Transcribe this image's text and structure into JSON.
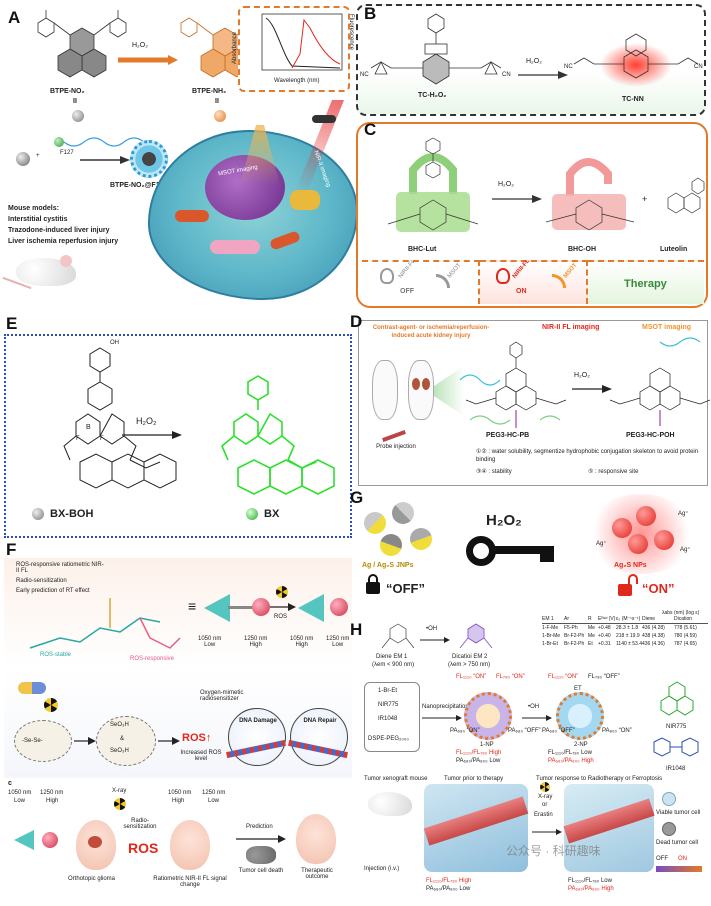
{
  "panels": {
    "A": {
      "letter": "A",
      "h2o2": "H₂O₂",
      "compound1": "BTPE-NO₂",
      "compound2": "BTPE-NH₂",
      "roman": "II",
      "f127": "F127",
      "np": "BTPE-NO₂@F127",
      "inset_xlabel": "Wavelength (nm)",
      "inset_ylabel_left": "Absorbance",
      "inset_ylabel_right": "Fluorescence",
      "inset_ticks": [
        "400",
        "600",
        "800",
        "1000",
        "1200",
        "1400"
      ],
      "mouse_models_title": "Mouse models:",
      "models": [
        "Interstitial cystitis",
        "Trazodone-induced liver injury",
        "Liver ischemia reperfusion injury"
      ],
      "msot": "MSOT imaging",
      "nir2": "NIR-II imaging"
    },
    "B": {
      "letter": "B",
      "c1": "TC-H₂O₂",
      "c2": "TC-NN",
      "h2o2": "H₂O₂",
      "nc": "NC",
      "cn": "CN"
    },
    "C": {
      "letter": "C",
      "c1": "BHC-Lut",
      "c2": "BHC-OH",
      "c3": "Luteolin",
      "h2o2": "H₂O₂",
      "plus": "+",
      "nirfl": "NIRII-FL",
      "msot": "MSOT",
      "off": "OFF",
      "on": "ON",
      "therapy": "Therapy"
    },
    "D": {
      "letter": "D",
      "header_left": "Contrast-agent- or ischemia/reperfusion-induced acute kidney injury",
      "header_mid": "NIR-II FL imaging",
      "header_right": "MSOT imaging",
      "probe": "Probe injection",
      "c1": "PEG3-HC-PB",
      "c2": "PEG3-HC-POH",
      "h2o2": "H₂O₂",
      "legend1": "①② : water solubility, segmentize hydrophobic conjugation skeleton to avoid protein binding",
      "legend2": "③④ : stability",
      "legend3": "⑤ : responsive site"
    },
    "E": {
      "letter": "E",
      "h2o2": "H₂O₂",
      "c1": "BX-BOH",
      "c2": "BX",
      "boh": "OH",
      "b": "B",
      "f": "F"
    },
    "F": {
      "letter": "F",
      "bullets": [
        "ROS-responsive ratiometric NIR-II FL",
        "Radio-sensitization",
        "Early prediction of RT effect"
      ],
      "ros_stable": "ROS-stable",
      "ros_responsive": "ROS-responsive",
      "ros": "ROS",
      "nm1050_low": "1050 nm\nLow",
      "nm1250_high": "1250 nm\nHigh",
      "nm1050_high": "1050 nm\nHigh",
      "nm1250_low": "1250 nm\nLow",
      "oxy": "Oxygen-mimetic radiosensitizer",
      "seo3h": "SeO₃H",
      "amp": "&",
      "ros_up": "ROS↑",
      "inc_ros": "Increased ROS level",
      "dna_damage": "DNA Damage",
      "dna_repair": "DNA Repair",
      "sub_c": "c",
      "xray": "X-ray",
      "radio": "Radio-sensitization",
      "prediction": "Prediction",
      "glioma": "Orthotopic glioma",
      "ratiometric": "Ratiometric NIR-II FL signal change",
      "death": "Tumor cell death",
      "outcome": "Therapeutic outcome",
      "b1050": "1050 nm",
      "b1250": "1250 nm",
      "low": "Low",
      "high": "High"
    },
    "G": {
      "letter": "G",
      "h2o2": "H₂O₂",
      "left_label": "Ag / Ag₂S JNPs",
      "right_label": "Ag₂S NPs",
      "off": "“OFF”",
      "on": "“ON”",
      "agplus": "Ag⁺"
    },
    "H": {
      "letter": "H",
      "diene": "Diene EM 1",
      "dicatio": "Dicatioi EM 2",
      "em1_lambda": "(λem < 900 nm)",
      "em2_lambda": "(λem > 750 nm)",
      "oh": "•OH",
      "table_head": [
        "EM 1",
        "Ar",
        "R",
        "Eᴿᵉᵈ (V)",
        "ε₀ (M⁻¹s⁻¹)",
        "Diene",
        "Dication"
      ],
      "table_group": "λabs (nm) (log ε)",
      "table_rows": [
        [
          "1-F-Me",
          "F5-Ph",
          "Me",
          "+0.48",
          "28.3 ± 1.8",
          "436 (4.28)",
          "778 (5.61)"
        ],
        [
          "1-Br-Me",
          "Br-F2-Ph",
          "Me",
          "+0.40",
          "218 ± 19.9",
          "438 (4.38)",
          "780 (4.59)"
        ],
        [
          "1-Br-Et",
          "Br-F2-Ph",
          "Et",
          "+0.31",
          "1140 ± 53.4",
          "436 (4.36)",
          "787 (4.65)"
        ]
      ],
      "materials": [
        "1-Br-Et",
        "NIR775",
        "IR1048",
        "DSPE-PEG₂₀₀₀"
      ],
      "nanoprec": "Nanoprecipitation",
      "np1": "1-NP",
      "np2": "2-NP",
      "fl1110_on": "FL₁₁₁₀ “ON”",
      "fl780_on": "FL₇₈₀ “ON”",
      "fl780_off": "FL₇₈₀ “OFF”",
      "pa680_on": "PA₆₈₀ “ON”",
      "pa680_off": "PA₆₈₀ “OFF”",
      "pa_on": "PA₈₀₀ “ON”",
      "ratio1": "FL₁₁₁₀/FL₇₈₀ High",
      "ratio2": "PA₆₈₀/PA₈₀₀ Low",
      "ratio3": "FL₁₁₁₀/FL₇₈₀ Low",
      "ratio4": "PA₆₈₀/PA₈₀₀ High",
      "nir775": "NIR775",
      "ir1048": "IR1048",
      "tumor_mouse": "Tumor xenograft mouse",
      "injection": "Injection (i.v.)",
      "before": "Tumor prior to therapy",
      "after": "Tumor response to Radiotherapy or Ferroptosis",
      "xray": "X-ray",
      "or": "or",
      "erastin": "Erastin",
      "viable": "Viable tumor cell",
      "dead": "Dead tumor cell",
      "off": "OFF",
      "on": "ON",
      "et": "ET",
      "watermark": "公众号 · 科研趣味"
    }
  },
  "colors": {
    "orange": "#e27a2a",
    "green": "#3aa84a",
    "red": "#e0281c",
    "blue_dashed": "#2a4fb8",
    "pink": "#e85b8a",
    "teal": "#29a7a0"
  }
}
